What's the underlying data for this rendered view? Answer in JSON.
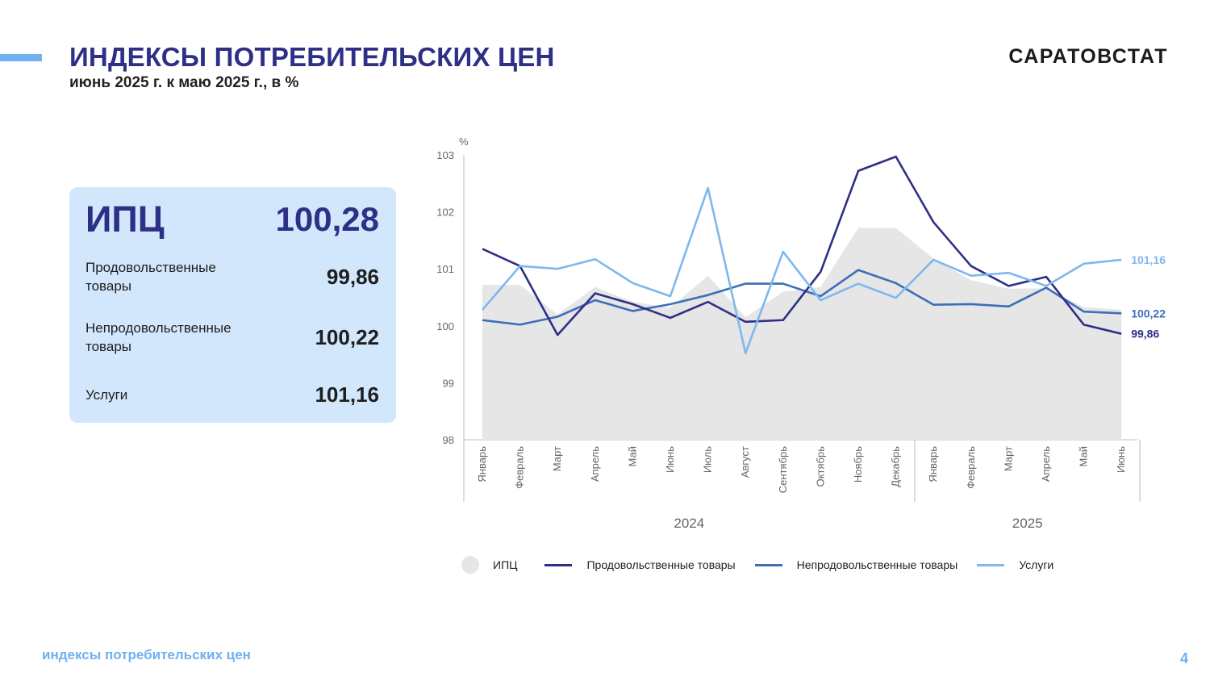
{
  "header": {
    "title": "ИНДЕКСЫ ПОТРЕБИТЕЛЬСКИХ ЦЕН",
    "subtitle": "июнь 2025 г. к маю 2025 г., в %",
    "org": "САРАТОВСТАТ"
  },
  "summary": {
    "cpi_label": "ИПЦ",
    "cpi_value": "100,28",
    "rows": [
      {
        "label": "Продовольственные\nтовары",
        "value": "99,86"
      },
      {
        "label": "Непродовольственные\nтовары",
        "value": "100,22"
      },
      {
        "label": "Услуги",
        "value": "101,16"
      }
    ]
  },
  "colors": {
    "cpi": "#e6e6e6",
    "food": "#2e2f86",
    "nonfood": "#3c6fb8",
    "services": "#7db8ee"
  },
  "chart_data": {
    "type": "line",
    "ylabel": "%",
    "ylim": [
      98,
      103
    ],
    "yticks": [
      98,
      99,
      100,
      101,
      102,
      103
    ],
    "categories": [
      "Январь",
      "Февраль",
      "Март",
      "Апрель",
      "Май",
      "Июнь",
      "Июль",
      "Август",
      "Сентябрь",
      "Октябрь",
      "Ноябрь",
      "Декабрь",
      "Январь",
      "Февраль",
      "Март",
      "Апрель",
      "Май",
      "Июнь"
    ],
    "years": [
      {
        "label": "2024",
        "start": 0,
        "end": 11
      },
      {
        "label": "2025",
        "start": 12,
        "end": 17
      }
    ],
    "series": [
      {
        "name": "ИПЦ",
        "kind": "area",
        "values": [
          100.72,
          100.72,
          100.2,
          100.68,
          100.42,
          100.32,
          100.88,
          100.15,
          100.6,
          100.68,
          101.72,
          101.72,
          101.18,
          100.8,
          100.65,
          100.66,
          100.33,
          100.28
        ]
      },
      {
        "name": "Продовольственные товары",
        "kind": "line",
        "values": [
          101.35,
          101.05,
          99.84,
          100.57,
          100.38,
          100.14,
          100.42,
          100.07,
          100.1,
          100.95,
          102.72,
          102.97,
          101.82,
          101.05,
          100.7,
          100.86,
          100.02,
          99.86
        ]
      },
      {
        "name": "Непродовольственные товары",
        "kind": "line",
        "values": [
          100.1,
          100.02,
          100.16,
          100.45,
          100.26,
          100.38,
          100.54,
          100.74,
          100.74,
          100.52,
          100.98,
          100.75,
          100.37,
          100.38,
          100.34,
          100.67,
          100.25,
          100.22
        ]
      },
      {
        "name": "Услуги",
        "kind": "line",
        "values": [
          100.28,
          101.05,
          101.0,
          101.17,
          100.75,
          100.52,
          102.42,
          99.52,
          101.3,
          100.45,
          100.74,
          100.49,
          101.16,
          100.88,
          100.93,
          100.7,
          101.09,
          101.16
        ]
      }
    ],
    "end_labels": [
      "",
      "99,86",
      "100,22",
      "101,16"
    ],
    "legend_position": "bottom"
  },
  "footer": {
    "text": "индексы потребительских цен",
    "page": "4"
  }
}
